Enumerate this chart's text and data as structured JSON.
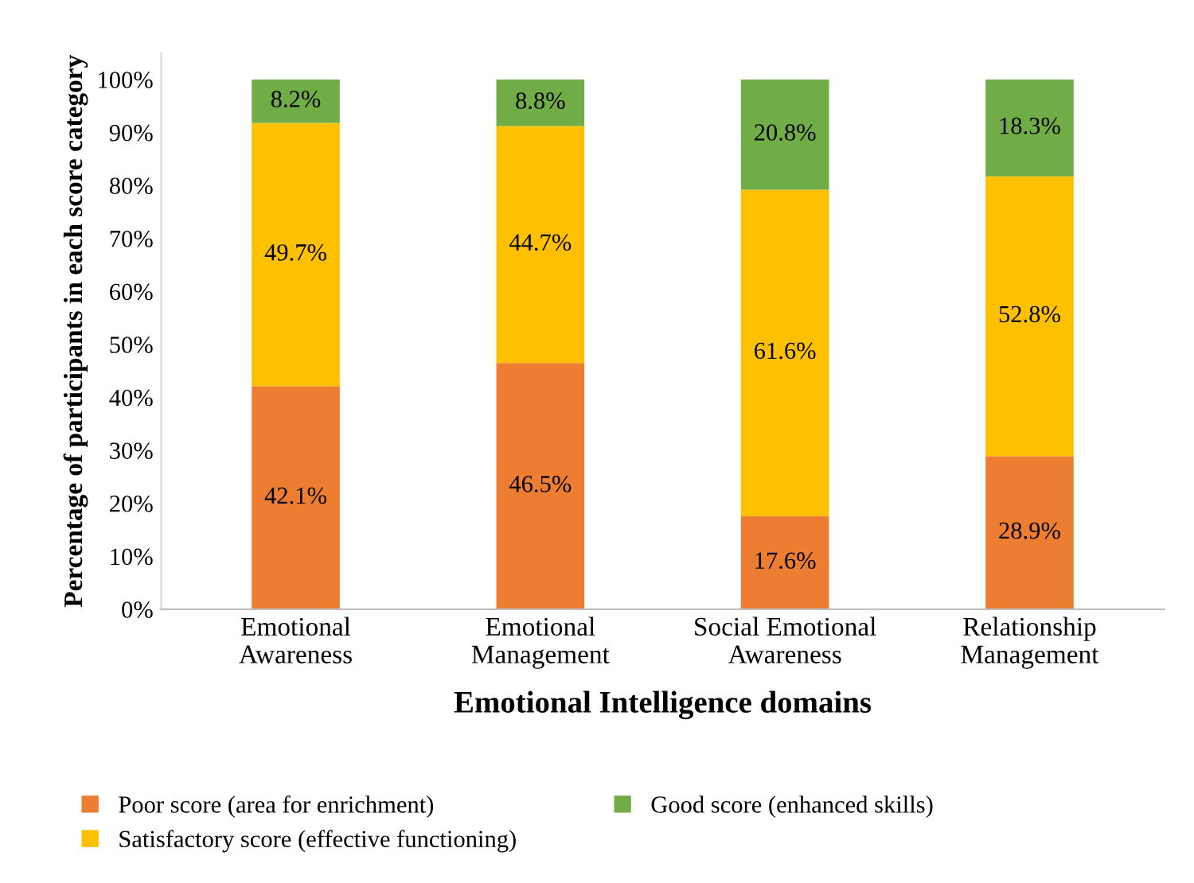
{
  "chart_data": {
    "type": "bar",
    "stacked": true,
    "xlabel": "Emotional Intelligence domains",
    "ylabel": "Percentage of participants in each score category",
    "categories": [
      "Emotional\nAwareness",
      "Emotional\nManagement",
      "Social Emotional\nAwareness",
      "Relationship\nManagement"
    ],
    "series": [
      {
        "name": "Poor score (area for enrichment)",
        "color": "#ed7d31",
        "values": [
          42.1,
          46.5,
          17.6,
          28.9
        ],
        "value_labels": [
          "42.1%",
          "46.5%",
          "17.6%",
          "28.9%"
        ]
      },
      {
        "name": "Satisfactory score (effective functioning)",
        "color": "#ffc000",
        "values": [
          49.7,
          44.7,
          61.6,
          52.8
        ],
        "value_labels": [
          "49.7%",
          "44.7%",
          "61.6%",
          "52.8%"
        ]
      },
      {
        "name": "Good score (enhanced skills)",
        "color": "#70ad47",
        "values": [
          8.2,
          8.8,
          20.8,
          18.3
        ],
        "value_labels": [
          "8.2%",
          "8.8%",
          "20.8%",
          "18.3%"
        ]
      }
    ],
    "ylim": [
      0,
      105
    ],
    "yticks": [
      {
        "value": 0,
        "label": "0%"
      },
      {
        "value": 10,
        "label": "10%"
      },
      {
        "value": 20,
        "label": "20%"
      },
      {
        "value": 30,
        "label": "30%"
      },
      {
        "value": 40,
        "label": "40%"
      },
      {
        "value": 50,
        "label": "50%"
      },
      {
        "value": 60,
        "label": "60%"
      },
      {
        "value": 70,
        "label": "70%"
      },
      {
        "value": 80,
        "label": "80%"
      },
      {
        "value": 90,
        "label": "90%"
      },
      {
        "value": 100,
        "label": "100%"
      }
    ],
    "grid": false,
    "legend": "bottom"
  }
}
